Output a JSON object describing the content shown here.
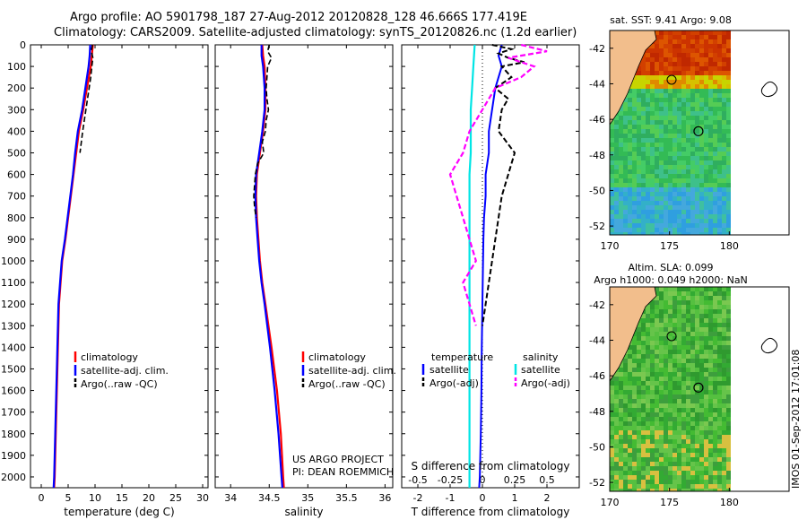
{
  "header": {
    "title_line1": "Argo profile: AO 5901798_187 27-Aug-2012 20120828_128 46.666S 177.419E",
    "title_line2": "Climatology: CARS2009. Satellite-adjusted climatology: synTS_20120826.nc (1.2d earlier)"
  },
  "colors": {
    "climatology": "#ff0000",
    "satellite": "#0000ff",
    "argo": "#000000",
    "salinity_satellite": "#00e5e5",
    "salinity_argo": "#ff00ff",
    "land": "#f2be8c"
  },
  "chart_data": [
    {
      "type": "line",
      "xlabel": "temperature (deg C)",
      "ylabel": "",
      "xlim": [
        -2,
        31
      ],
      "ylim": [
        2050,
        0
      ],
      "xticks": [
        0,
        5,
        10,
        15,
        20,
        25,
        30
      ],
      "yticks": [
        0,
        100,
        200,
        300,
        400,
        500,
        600,
        700,
        800,
        900,
        1000,
        1100,
        1200,
        1300,
        1400,
        1500,
        1600,
        1700,
        1800,
        1900,
        2000
      ],
      "legend": [
        "climatology",
        "satellite-adj. clim.",
        "Argo(..raw -QC)"
      ],
      "series": [
        {
          "name": "climatology",
          "depth": [
            0,
            50,
            100,
            200,
            300,
            400,
            500,
            600,
            700,
            800,
            900,
            1000,
            1100,
            1200,
            1300,
            1400,
            1600,
            1800,
            2000,
            2050
          ],
          "values": [
            9.6,
            9.4,
            9.2,
            8.5,
            7.8,
            7.0,
            6.5,
            6.0,
            5.5,
            5.0,
            4.5,
            3.9,
            3.6,
            3.3,
            3.2,
            3.1,
            2.9,
            2.7,
            2.5,
            2.4
          ]
        },
        {
          "name": "satellite-adj. clim.",
          "depth": [
            0,
            50,
            100,
            200,
            300,
            400,
            500,
            600,
            700,
            800,
            900,
            1000,
            1100,
            1200,
            1300,
            1400,
            1600,
            1800,
            2000,
            2050
          ],
          "values": [
            9.1,
            9.0,
            8.8,
            8.2,
            7.6,
            6.8,
            6.3,
            5.9,
            5.4,
            4.9,
            4.4,
            3.8,
            3.5,
            3.2,
            3.1,
            3.0,
            2.8,
            2.6,
            2.4,
            2.3
          ]
        },
        {
          "name": "Argo(..raw -QC)",
          "depth": [
            0,
            30,
            60,
            100,
            150,
            200,
            250,
            300,
            400,
            500
          ],
          "values": [
            9.5,
            9.3,
            9.6,
            9.4,
            9.2,
            8.9,
            8.6,
            8.3,
            7.7,
            7.2
          ]
        }
      ]
    },
    {
      "type": "line",
      "xlabel": "salinity",
      "xlim": [
        33.8,
        36.1
      ],
      "ylim": [
        2050,
        0
      ],
      "xticks": [
        34,
        34.5,
        35,
        35.5,
        36
      ],
      "legend": [
        "climatology",
        "satellite-adj. clim.",
        "Argo(..raw -QC)"
      ],
      "annotation": [
        "US ARGO PROJECT",
        "PI: DEAN ROEMMICH"
      ],
      "series": [
        {
          "name": "climatology",
          "depth": [
            0,
            50,
            100,
            200,
            300,
            400,
            500,
            600,
            700,
            800,
            900,
            1000,
            1100,
            1200,
            1400,
            1600,
            1800,
            2000,
            2050
          ],
          "values": [
            34.41,
            34.42,
            34.44,
            34.45,
            34.45,
            34.42,
            34.38,
            34.34,
            34.33,
            34.34,
            34.36,
            34.38,
            34.41,
            34.45,
            34.53,
            34.6,
            34.65,
            34.68,
            34.69
          ]
        },
        {
          "name": "satellite-adj. clim.",
          "depth": [
            0,
            50,
            100,
            200,
            300,
            400,
            500,
            600,
            700,
            800,
            900,
            1000,
            1100,
            1200,
            1400,
            1600,
            1800,
            2000,
            2050
          ],
          "values": [
            34.4,
            34.4,
            34.42,
            34.44,
            34.44,
            34.41,
            34.37,
            34.33,
            34.32,
            34.33,
            34.35,
            34.37,
            34.4,
            34.44,
            34.51,
            34.57,
            34.62,
            34.66,
            34.67
          ]
        },
        {
          "name": "Argo(..raw -QC)",
          "depth": [
            0,
            30,
            60,
            100,
            150,
            200,
            250,
            300,
            350,
            400,
            450,
            500,
            550,
            600,
            650,
            700,
            750,
            800
          ],
          "values": [
            34.5,
            34.48,
            34.53,
            34.48,
            34.47,
            34.46,
            34.47,
            34.49,
            34.46,
            34.45,
            34.41,
            34.43,
            34.35,
            34.32,
            34.31,
            34.3,
            34.31,
            34.33
          ]
        }
      ]
    },
    {
      "type": "line",
      "xlabel": "T difference from climatology",
      "xlabel_top": "S difference from climatology",
      "xlim": [
        -2.5,
        3.0
      ],
      "ylim": [
        2050,
        0
      ],
      "xticks": [
        -2,
        -1,
        0,
        1,
        2
      ],
      "xticks_top": [
        -0.5,
        -0.25,
        0,
        0.25,
        0.5
      ],
      "legend_temperature_title": "temperature",
      "legend_salinity_title": "salinity",
      "legend": [
        "satellite",
        "Argo(-adj)",
        "satellite",
        "Argo(-adj)"
      ],
      "series": [
        {
          "name": "T satellite",
          "depth": [
            0,
            50,
            100,
            200,
            300,
            400,
            500,
            600,
            700,
            800,
            900,
            1000,
            1200,
            1400,
            1600,
            1800,
            2000,
            2050
          ],
          "values": [
            0.6,
            0.5,
            0.6,
            0.4,
            0.3,
            0.2,
            0.2,
            0.1,
            0.1,
            0.05,
            0.03,
            0.02,
            0.0,
            -0.02,
            -0.03,
            -0.05,
            -0.08,
            -0.1
          ]
        },
        {
          "name": "T Argo(-adj)",
          "depth": [
            0,
            20,
            40,
            60,
            80,
            100,
            150,
            200,
            250,
            300,
            400,
            500,
            600,
            700,
            800,
            900,
            1000,
            1100,
            1200,
            1300
          ],
          "values": [
            0.3,
            0.9,
            0.5,
            0.8,
            1.3,
            0.6,
            0.9,
            0.4,
            0.8,
            0.6,
            0.5,
            1.0,
            0.8,
            0.6,
            0.5,
            0.4,
            0.3,
            0.2,
            0.1,
            0.0
          ]
        },
        {
          "name": "S satellite",
          "depth": [
            0,
            100,
            200,
            300,
            400,
            500,
            600,
            800,
            1000,
            1200,
            1400,
            1600,
            1800,
            2000,
            2050
          ],
          "values": [
            -0.06,
            -0.07,
            -0.08,
            -0.09,
            -0.09,
            -0.09,
            -0.1,
            -0.1,
            -0.1,
            -0.1,
            -0.1,
            -0.1,
            -0.1,
            -0.1,
            -0.1
          ]
        },
        {
          "name": "S Argo(-adj)",
          "depth": [
            0,
            30,
            60,
            100,
            150,
            200,
            300,
            400,
            500,
            600,
            700,
            800,
            900,
            1000,
            1100,
            1200,
            1300
          ],
          "values": [
            0.3,
            0.5,
            0.2,
            0.4,
            0.3,
            0.1,
            0.0,
            -0.1,
            -0.15,
            -0.25,
            -0.2,
            -0.15,
            -0.1,
            -0.05,
            -0.15,
            -0.1,
            -0.05
          ]
        }
      ]
    },
    {
      "type": "heatmap",
      "title": "sat. SST: 9.41 Argo: 9.08",
      "xlim": [
        170,
        185
      ],
      "ylim": [
        -52.5,
        -41
      ],
      "xticks": [
        170,
        175,
        180
      ],
      "yticks": [
        -42,
        -44,
        -46,
        -48,
        -50,
        -52
      ],
      "marker": {
        "lon": 177.419,
        "lat": -46.666
      }
    },
    {
      "type": "heatmap",
      "title": "Altim. SLA: 0.099",
      "subtitle": "Argo h1000: 0.049 h2000: NaN",
      "xlim": [
        170,
        185
      ],
      "ylim": [
        -52.5,
        -41
      ],
      "xticks": [
        170,
        175,
        180
      ],
      "yticks": [
        -42,
        -44,
        -46,
        -48,
        -50,
        -52
      ],
      "marker": {
        "lon": 177.419,
        "lat": -46.666
      }
    }
  ],
  "footer": {
    "stamp": "IMOS 01-Sep-2012 17:01:08"
  }
}
